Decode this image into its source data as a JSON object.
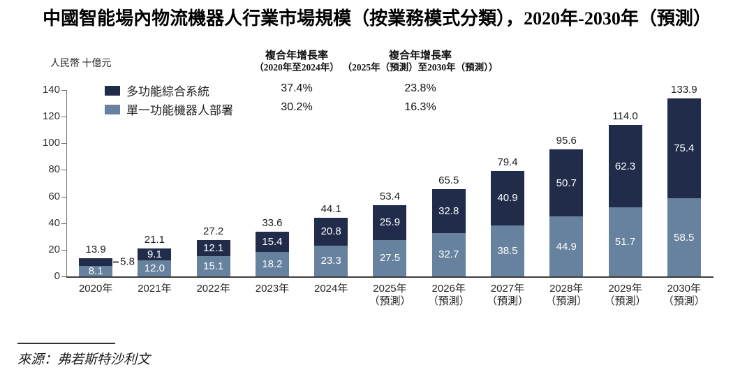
{
  "source": "來源：弗若斯特沙利文",
  "cagr_table": {
    "columns": [
      {
        "header_line1": "複合年增長率",
        "header_line2": "（2020年至2024年）",
        "values": [
          "37.4%",
          "30.2%"
        ]
      },
      {
        "header_line1": "複合年增長率",
        "header_line2": "（2025年（預測）至2030年（預測））",
        "values": [
          "23.8%",
          "16.3%"
        ]
      }
    ]
  },
  "chart_data": {
    "type": "bar",
    "stacked": true,
    "title": "中國智能場內物流機器人行業市場規模（按業務模式分類），2020年-2030年（預測）",
    "ylabel": "人民幣 十億元",
    "xlabel": "",
    "grid": false,
    "legend_position": "top-left",
    "ylim": [
      0,
      140
    ],
    "yticks": [
      0,
      20,
      40,
      60,
      80,
      100,
      120,
      140
    ],
    "categories": [
      "2020年",
      "2021年",
      "2022年",
      "2023年",
      "2024年",
      "2025年",
      "2026年",
      "2027年",
      "2028年",
      "2029年",
      "2030年"
    ],
    "category_notes": [
      "",
      "",
      "",
      "",
      "",
      "（預測）",
      "（預測）",
      "（預測）",
      "（預測）",
      "（預測）",
      "（預測）"
    ],
    "series": [
      {
        "name": "單一功能機器人部署",
        "color": "#66829e",
        "values": [
          8.1,
          12.0,
          15.1,
          18.2,
          23.3,
          27.5,
          32.7,
          38.5,
          44.9,
          51.7,
          58.5
        ],
        "value_labels": [
          "8.1",
          "12.0",
          "15.1",
          "18.2",
          "23.3",
          "27.5",
          "32.7",
          "38.5",
          "44.9",
          "51.7",
          "58.5"
        ]
      },
      {
        "name": "多功能綜合系統",
        "color": "#202c4a",
        "values": [
          5.8,
          9.1,
          12.1,
          15.4,
          20.8,
          25.9,
          32.8,
          40.9,
          50.7,
          62.3,
          75.4
        ],
        "value_labels": [
          "5.8",
          "9.1",
          "12.1",
          "15.4",
          "20.8",
          "25.9",
          "32.8",
          "40.9",
          "50.7",
          "62.3",
          "75.4"
        ]
      }
    ],
    "totals": [
      13.9,
      21.1,
      27.2,
      33.6,
      44.1,
      53.4,
      65.5,
      79.4,
      95.6,
      114.0,
      133.9
    ],
    "total_labels": [
      "13.9",
      "21.1",
      "27.2",
      "33.6",
      "44.1",
      "53.4",
      "65.5",
      "79.4",
      "95.6",
      "114.0",
      "133.9"
    ]
  }
}
